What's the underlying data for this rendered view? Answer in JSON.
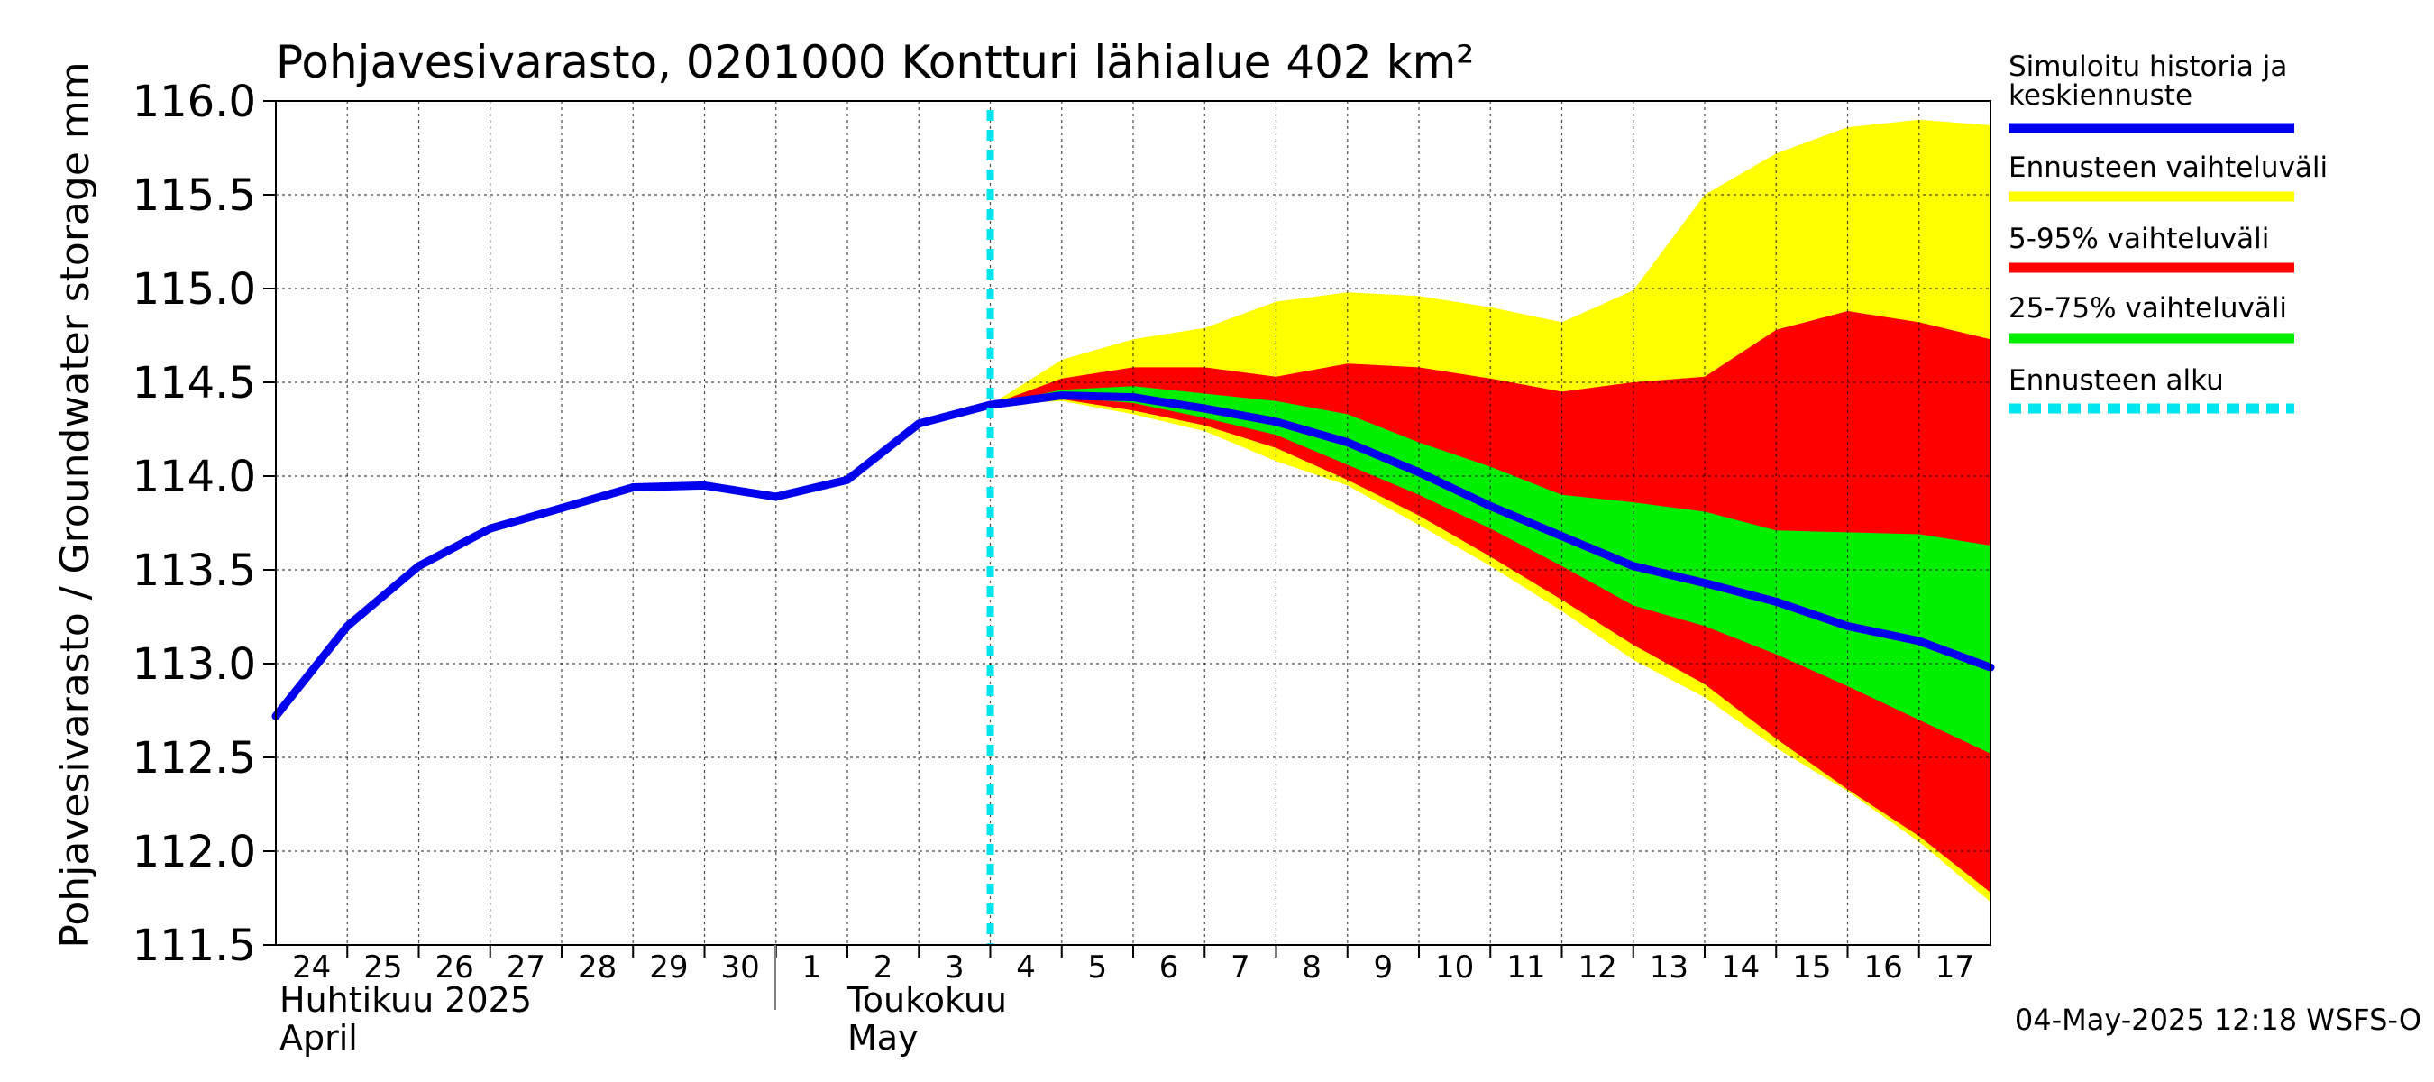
{
  "chart_data": {
    "type": "area",
    "title": "Pohjavesivarasto, 0201000 Kontturi lähialue 402 km²",
    "ylabel": "Pohjavesivarasto / Groundwater storage   mm",
    "ylim": [
      111.5,
      116.0
    ],
    "yticks": [
      "116.0",
      "115.5",
      "115.0",
      "114.5",
      "114.0",
      "113.5",
      "113.0",
      "112.5",
      "112.0",
      "111.5"
    ],
    "ytick_values": [
      116.0,
      115.5,
      115.0,
      114.5,
      114.0,
      113.5,
      113.0,
      112.5,
      112.0,
      111.5
    ],
    "xlim": [
      0,
      24
    ],
    "x_tick_labels": [
      "24",
      "25",
      "26",
      "27",
      "28",
      "29",
      "30",
      "1",
      "2",
      "3",
      "4",
      "5",
      "6",
      "7",
      "8",
      "9",
      "10",
      "11",
      "12",
      "13",
      "14",
      "15",
      "16",
      "17"
    ],
    "month_labels": {
      "april_fi": "Huhtikuu  2025",
      "april_en": "April",
      "may_fi": "Toukokuu",
      "may_en": "May"
    },
    "forecast_start_x": 10,
    "series": [
      {
        "name": "Simuloitu historia ja keskiennuste",
        "color": "#0000ee",
        "x": [
          0,
          1,
          2,
          3,
          4,
          5,
          6,
          7,
          8,
          9,
          10,
          11,
          12,
          13,
          14,
          15,
          16,
          17,
          18,
          19,
          20,
          21,
          22,
          23,
          24
        ],
        "values": [
          112.72,
          113.2,
          113.52,
          113.72,
          113.83,
          113.94,
          113.95,
          113.89,
          113.98,
          114.28,
          114.38,
          114.43,
          114.42,
          114.36,
          114.29,
          114.18,
          114.02,
          113.84,
          113.68,
          113.52,
          113.43,
          113.33,
          113.2,
          113.12,
          112.98
        ]
      }
    ],
    "bands": [
      {
        "name": "Ennusteen vaihteluväli",
        "color": "#ffff00",
        "x": [
          10,
          11,
          12,
          13,
          14,
          15,
          16,
          17,
          18,
          19,
          20,
          21,
          22,
          23,
          24
        ],
        "upper": [
          114.38,
          114.62,
          114.73,
          114.79,
          114.93,
          114.98,
          114.96,
          114.9,
          114.82,
          114.99,
          115.5,
          115.72,
          115.86,
          115.9,
          115.87
        ],
        "lower": [
          114.38,
          114.4,
          114.33,
          114.24,
          114.08,
          113.95,
          113.74,
          113.52,
          113.28,
          113.02,
          112.82,
          112.55,
          112.32,
          112.05,
          111.73
        ]
      },
      {
        "name": "5-95% vaihteluväli",
        "color": "#ff0000",
        "x": [
          10,
          11,
          12,
          13,
          14,
          15,
          16,
          17,
          18,
          19,
          20,
          21,
          22,
          23,
          24
        ],
        "upper": [
          114.38,
          114.52,
          114.58,
          114.58,
          114.53,
          114.6,
          114.58,
          114.52,
          114.45,
          114.5,
          114.53,
          114.78,
          114.88,
          114.82,
          114.73
        ],
        "lower": [
          114.38,
          114.41,
          114.35,
          114.27,
          114.15,
          113.98,
          113.79,
          113.57,
          113.34,
          113.1,
          112.89,
          112.6,
          112.33,
          112.08,
          111.78
        ]
      },
      {
        "name": "25-75% vaihteluväli",
        "color": "#00ee00",
        "x": [
          10,
          11,
          12,
          13,
          14,
          15,
          16,
          17,
          18,
          19,
          20,
          21,
          22,
          23,
          24
        ],
        "upper": [
          114.38,
          114.46,
          114.48,
          114.44,
          114.4,
          114.33,
          114.18,
          114.05,
          113.9,
          113.86,
          113.81,
          113.71,
          113.7,
          113.69,
          113.63
        ],
        "lower": [
          114.38,
          114.42,
          114.39,
          114.31,
          114.22,
          114.06,
          113.9,
          113.72,
          113.52,
          113.31,
          113.2,
          113.05,
          112.88,
          112.7,
          112.52
        ]
      }
    ],
    "legend": [
      {
        "label_lines": [
          "Simuloitu historia ja",
          "keskiennuste"
        ],
        "color": "#0000ee",
        "style": "solid"
      },
      {
        "label_lines": [
          "Ennusteen vaihteluväli"
        ],
        "color": "#ffff00",
        "style": "solid"
      },
      {
        "label_lines": [
          "5-95% vaihteluväli"
        ],
        "color": "#ff0000",
        "style": "solid"
      },
      {
        "label_lines": [
          "25-75% vaihteluväli"
        ],
        "color": "#00ee00",
        "style": "solid"
      },
      {
        "label_lines": [
          "Ennusteen alku"
        ],
        "color": "#00e5ee",
        "style": "dashed"
      }
    ],
    "legend_position": "right",
    "grid": true,
    "timestamp": "04-May-2025 12:18 WSFS-O"
  }
}
